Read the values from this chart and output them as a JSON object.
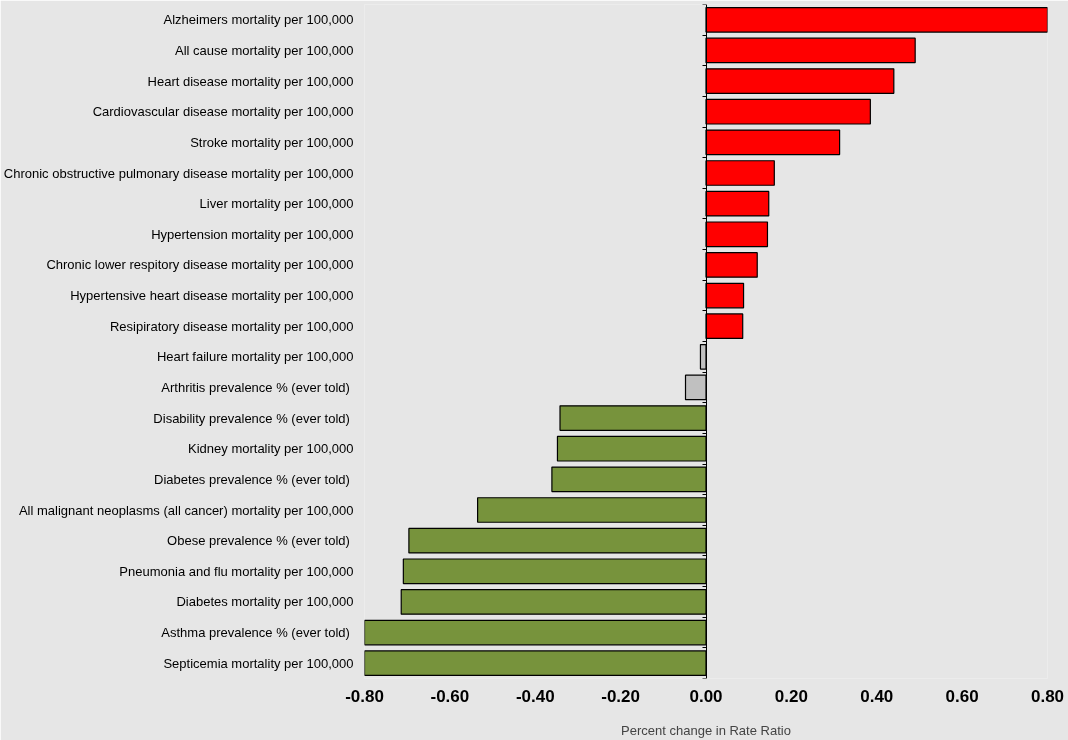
{
  "chart_data": {
    "type": "bar",
    "orientation": "horizontal",
    "xlabel": "Percent change in Rate Ratio",
    "categories": [
      "Alzheimers mortality per 100,000",
      "All cause mortality per 100,000",
      "Heart disease mortality per 100,000",
      "Cardiovascular disease mortality per 100,000",
      "Stroke mortality per 100,000",
      "Chronic obstructive pulmonary disease mortality per 100,000",
      "Liver mortality per 100,000",
      "Hypertension mortality per 100,000",
      "Chronic lower respitory disease mortality per 100,000",
      "Hypertensive heart disease mortality per 100,000",
      "Resipiratory disease mortality per 100,000",
      "Heart failure mortality per 100,000",
      "Arthritis prevalence  % (ever told)",
      "Disability prevalence  % (ever told)",
      "Kidney mortality per 100,000",
      "Diabetes prevalence  % (ever told)",
      "All malignant neoplasms (all cancer) mortality per 100,000",
      "Obese prevalence  % (ever told)",
      "Pneumonia and flu mortality per 100,000",
      "Diabetes mortality per 100,000",
      "Asthma prevalence  % (ever told)",
      "Septicemia mortality per 100,000"
    ],
    "values": [
      0.8,
      0.49,
      0.44,
      0.385,
      0.313,
      0.16,
      0.147,
      0.144,
      0.12,
      0.088,
      0.086,
      -0.013,
      -0.048,
      -0.342,
      -0.348,
      -0.361,
      -0.535,
      -0.696,
      -0.709,
      -0.714,
      -0.8,
      -0.8
    ],
    "colors": [
      "#ff0000",
      "#ff0000",
      "#ff0000",
      "#ff0000",
      "#ff0000",
      "#ff0000",
      "#ff0000",
      "#ff0000",
      "#ff0000",
      "#ff0000",
      "#ff0000",
      "#c0c0c0",
      "#c0c0c0",
      "#77933c",
      "#77933c",
      "#77933c",
      "#77933c",
      "#77933c",
      "#77933c",
      "#77933c",
      "#77933c",
      "#77933c"
    ],
    "xlim": [
      -0.8,
      0.8
    ],
    "xticks": [
      {
        "value": -0.8,
        "label": "-0.80"
      },
      {
        "value": -0.6,
        "label": "-0.60"
      },
      {
        "value": -0.4,
        "label": "-0.40"
      },
      {
        "value": -0.2,
        "label": "-0.20"
      },
      {
        "value": 0,
        "label": "0.00"
      },
      {
        "value": 0.2,
        "label": "0.20"
      },
      {
        "value": 0.4,
        "label": "0.40"
      },
      {
        "value": 0.6,
        "label": "0.60"
      },
      {
        "value": 0.8,
        "label": "0.80"
      }
    ]
  }
}
